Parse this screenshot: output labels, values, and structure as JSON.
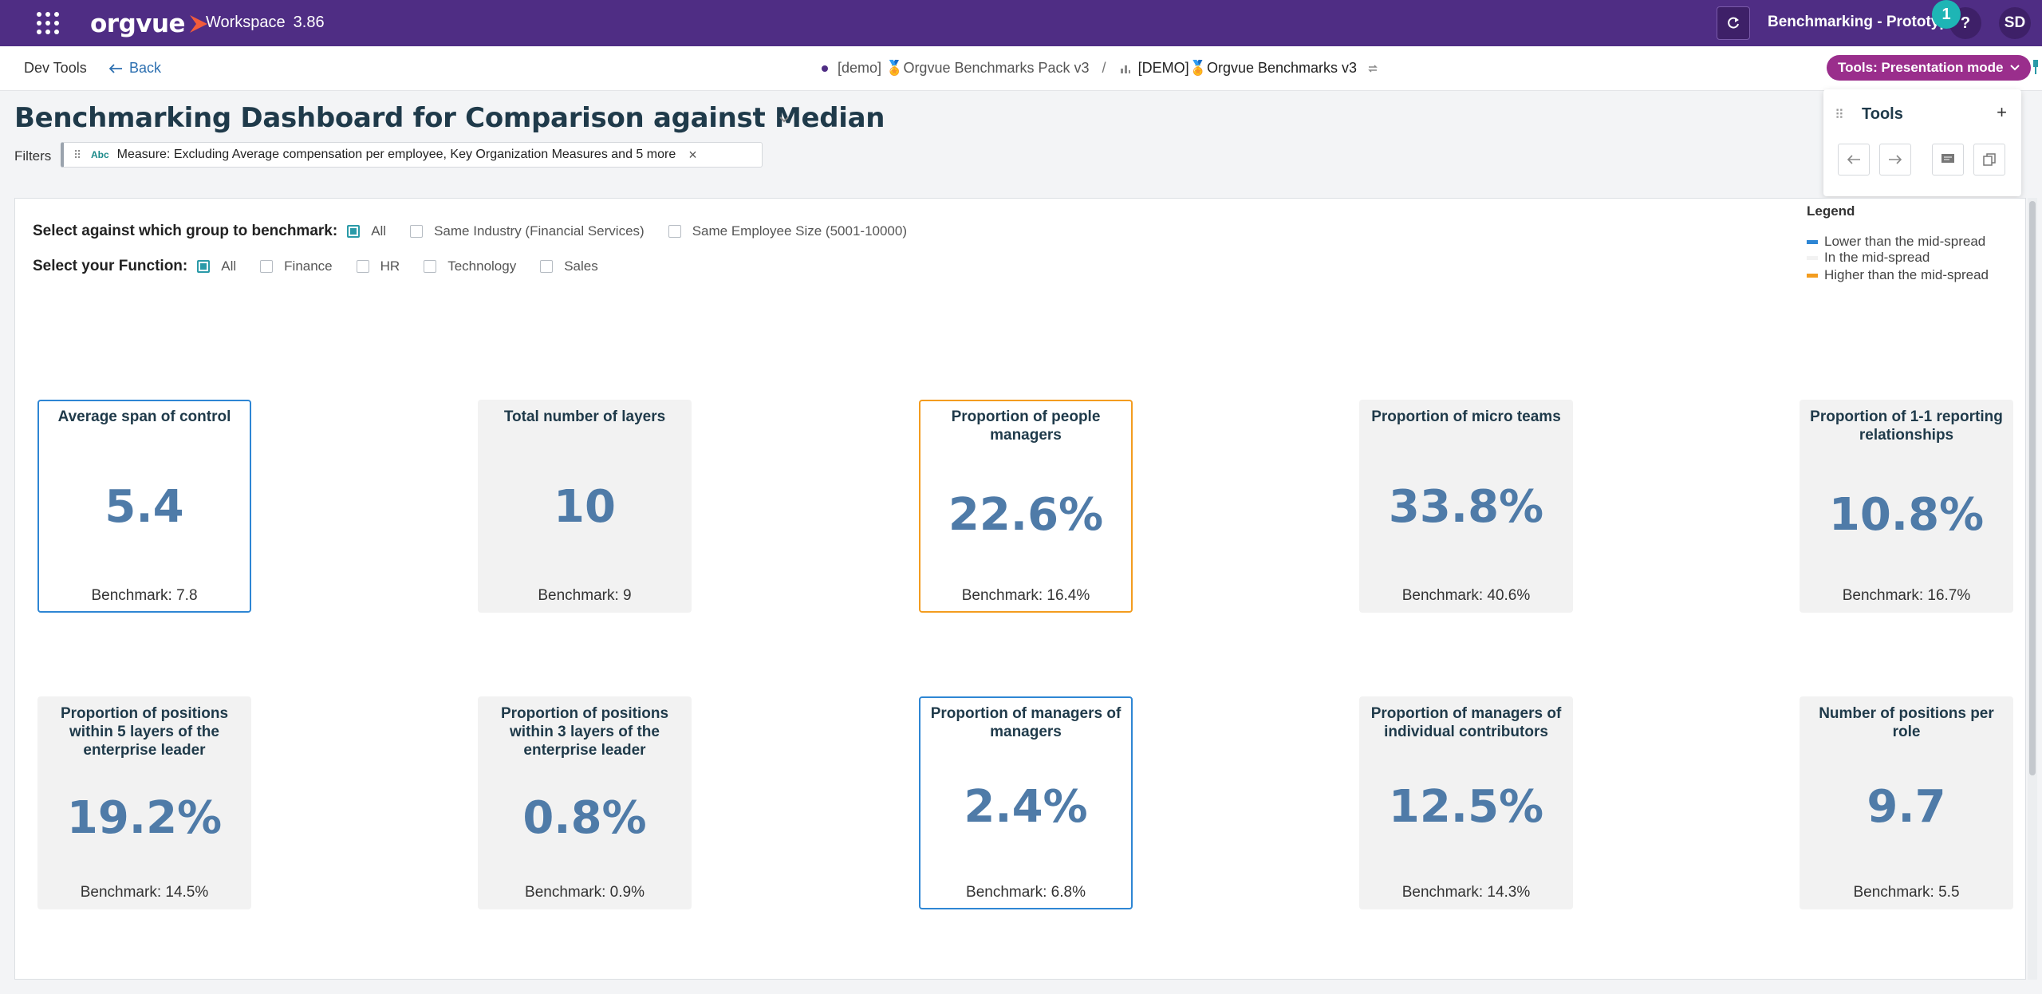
{
  "topbar": {
    "logo": "orgvue",
    "workspace_label": "Workspace",
    "version": "3.86",
    "project_title": "Benchmarking - Prototype",
    "help_label": "?",
    "notification_count": "1",
    "user_initials": "SD"
  },
  "subbar": {
    "dev_tools": "Dev Tools",
    "back": "Back",
    "breadcrumb_pack": "[demo] 🏅Orgvue Benchmarks Pack v3",
    "breadcrumb_sep": "/",
    "breadcrumb_current": "[DEMO]🏅Orgvue Benchmarks v3",
    "tools_mode": "Tools: Presentation mode"
  },
  "page": {
    "title": "Benchmarking Dashboard for Comparison against Median",
    "filters_label": "Filters",
    "filter_type": "Abc",
    "filter_text": "Measure: Excluding Average compensation per employee, Key Organization Measures and 5 more"
  },
  "tools_panel": {
    "title": "Tools",
    "add": "+"
  },
  "benchmark_group": {
    "label": "Select against which group to benchmark:",
    "options": [
      {
        "label": "All",
        "checked": true
      },
      {
        "label": "Same Industry (Financial Services)",
        "checked": false
      },
      {
        "label": "Same Employee Size (5001-10000)",
        "checked": false
      }
    ]
  },
  "function_select": {
    "label": "Select your Function:",
    "options": [
      {
        "label": "All",
        "checked": true
      },
      {
        "label": "Finance",
        "checked": false
      },
      {
        "label": "HR",
        "checked": false
      },
      {
        "label": "Technology",
        "checked": false
      },
      {
        "label": "Sales",
        "checked": false
      }
    ]
  },
  "legend": {
    "title": "Legend",
    "items": [
      {
        "label": "Lower than the mid-spread",
        "color": "#2e86d4"
      },
      {
        "label": "In the mid-spread",
        "color": "#f2f2f2"
      },
      {
        "label": "Higher than the mid-spread",
        "color": "#f39c1f"
      }
    ]
  },
  "colors": {
    "lower": "#2e86d4",
    "higher": "#f39c1f",
    "neutral": "#f2f2f2",
    "brand": "#4f2d84"
  },
  "cards": [
    {
      "title": "Average span of control",
      "value": "5.4",
      "benchmark": "Benchmark: 7.8",
      "status": "lower"
    },
    {
      "title": "Total number of layers",
      "value": "10",
      "benchmark": "Benchmark: 9",
      "status": "mid"
    },
    {
      "title": "Proportion of people managers",
      "value": "22.6%",
      "benchmark": "Benchmark: 16.4%",
      "status": "higher"
    },
    {
      "title": "Proportion of micro teams",
      "value": "33.8%",
      "benchmark": "Benchmark: 40.6%",
      "status": "mid"
    },
    {
      "title": "Proportion of 1-1 reporting relationships",
      "value": "10.8%",
      "benchmark": "Benchmark: 16.7%",
      "status": "mid"
    },
    {
      "title": "Proportion of positions within 5 layers of the enterprise leader",
      "value": "19.2%",
      "benchmark": "Benchmark: 14.5%",
      "status": "mid"
    },
    {
      "title": "Proportion of positions within 3 layers of the enterprise leader",
      "value": "0.8%",
      "benchmark": "Benchmark: 0.9%",
      "status": "mid"
    },
    {
      "title": "Proportion of managers of managers",
      "value": "2.4%",
      "benchmark": "Benchmark: 6.8%",
      "status": "lower"
    },
    {
      "title": "Proportion of managers of individual contributors",
      "value": "12.5%",
      "benchmark": "Benchmark: 14.3%",
      "status": "mid"
    },
    {
      "title": "Number of positions per role",
      "value": "9.7",
      "benchmark": "Benchmark: 5.5",
      "status": "mid"
    }
  ]
}
